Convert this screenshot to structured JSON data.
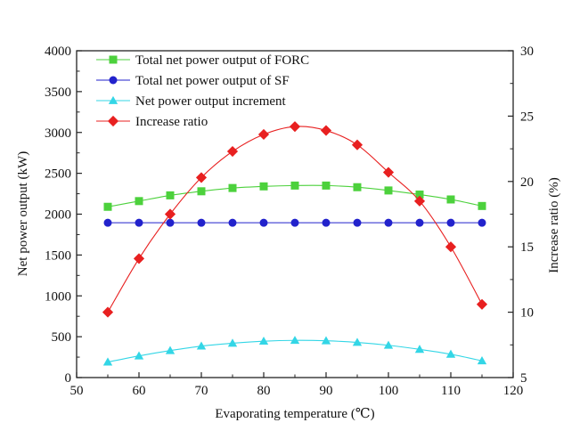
{
  "chart_data": {
    "type": "line",
    "title": "",
    "xlabel": "Evaporating temperature (℃)",
    "ylabel": "Net power output (kW)",
    "y2label": "Increase ratio (%)",
    "xlim": [
      50,
      120
    ],
    "ylim": [
      0,
      4000
    ],
    "y2lim": [
      5,
      30
    ],
    "x_ticks": [
      "50",
      "60",
      "70",
      "80",
      "90",
      "100",
      "110",
      "120"
    ],
    "y_ticks": [
      "0",
      "500",
      "1000",
      "1500",
      "2000",
      "2500",
      "3000",
      "3500",
      "4000"
    ],
    "y2_ticks": [
      "5",
      "10",
      "15",
      "20",
      "25",
      "30"
    ],
    "grid": false,
    "legend_position": "top-left",
    "x": [
      55,
      60,
      65,
      70,
      75,
      80,
      85,
      90,
      95,
      100,
      105,
      110,
      115
    ],
    "series": [
      {
        "name": "Total net power output of FORC",
        "axis": "left",
        "color": "#4cd13c",
        "marker": "square",
        "values": [
          2090,
          2160,
          2230,
          2280,
          2320,
          2340,
          2350,
          2350,
          2330,
          2290,
          2240,
          2180,
          2100
        ]
      },
      {
        "name": "Total net power output of SF",
        "axis": "left",
        "color": "#2222cc",
        "marker": "circle",
        "values": [
          1895,
          1895,
          1895,
          1895,
          1895,
          1895,
          1895,
          1895,
          1895,
          1895,
          1895,
          1895,
          1895
        ]
      },
      {
        "name": "Net power output increment",
        "axis": "left",
        "color": "#33d6e6",
        "marker": "triangle",
        "values": [
          190,
          265,
          330,
          385,
          420,
          445,
          455,
          450,
          430,
          395,
          345,
          285,
          205
        ]
      },
      {
        "name": "Increase ratio",
        "axis": "right",
        "color": "#e82020",
        "marker": "diamond",
        "values": [
          10.0,
          14.1,
          17.5,
          20.3,
          22.3,
          23.6,
          24.2,
          23.9,
          22.8,
          20.7,
          18.5,
          15.0,
          10.6
        ]
      }
    ]
  }
}
